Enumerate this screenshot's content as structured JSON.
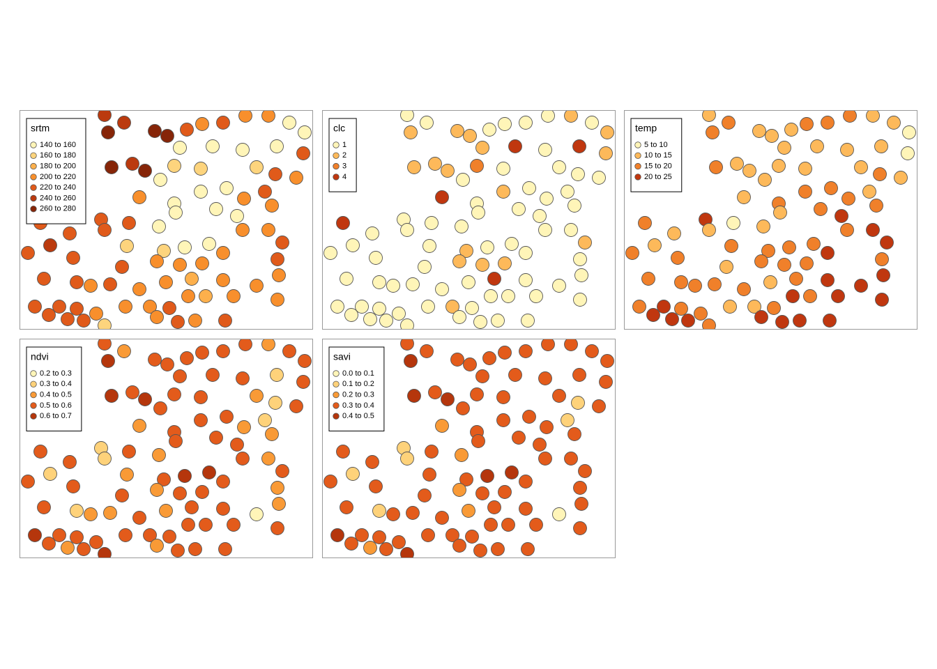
{
  "chart_data": {
    "type": "map",
    "xlim": [
      0,
      421
    ],
    "ylim": [
      315,
      0
    ],
    "points": [
      [
        122,
        7
      ],
      [
        150,
        18
      ],
      [
        127,
        32
      ],
      [
        194,
        30
      ],
      [
        212,
        37
      ],
      [
        240,
        28
      ],
      [
        262,
        20
      ],
      [
        292,
        18
      ],
      [
        324,
        8
      ],
      [
        357,
        8
      ],
      [
        387,
        18
      ],
      [
        409,
        32
      ],
      [
        277,
        52
      ],
      [
        230,
        54
      ],
      [
        320,
        57
      ],
      [
        369,
        52
      ],
      [
        407,
        62
      ],
      [
        132,
        82
      ],
      [
        162,
        77
      ],
      [
        180,
        87
      ],
      [
        222,
        80
      ],
      [
        260,
        84
      ],
      [
        340,
        82
      ],
      [
        367,
        92
      ],
      [
        397,
        97
      ],
      [
        202,
        100
      ],
      [
        260,
        117
      ],
      [
        297,
        112
      ],
      [
        322,
        127
      ],
      [
        352,
        117
      ],
      [
        172,
        125
      ],
      [
        222,
        134
      ],
      [
        282,
        142
      ],
      [
        362,
        137
      ],
      [
        117,
        157
      ],
      [
        157,
        162
      ],
      [
        200,
        167
      ],
      [
        224,
        147
      ],
      [
        312,
        152
      ],
      [
        357,
        172
      ],
      [
        30,
        162
      ],
      [
        72,
        177
      ],
      [
        122,
        172
      ],
      [
        154,
        195
      ],
      [
        207,
        202
      ],
      [
        237,
        197
      ],
      [
        272,
        192
      ],
      [
        292,
        205
      ],
      [
        320,
        172
      ],
      [
        377,
        190
      ],
      [
        12,
        205
      ],
      [
        44,
        194
      ],
      [
        77,
        212
      ],
      [
        197,
        217
      ],
      [
        230,
        222
      ],
      [
        262,
        220
      ],
      [
        147,
        225
      ],
      [
        370,
        214
      ],
      [
        35,
        242
      ],
      [
        82,
        247
      ],
      [
        102,
        252
      ],
      [
        130,
        250
      ],
      [
        172,
        257
      ],
      [
        210,
        247
      ],
      [
        247,
        242
      ],
      [
        292,
        244
      ],
      [
        340,
        252
      ],
      [
        372,
        237
      ],
      [
        57,
        282
      ],
      [
        22,
        282
      ],
      [
        82,
        285
      ],
      [
        110,
        292
      ],
      [
        152,
        282
      ],
      [
        187,
        282
      ],
      [
        215,
        284
      ],
      [
        242,
        267
      ],
      [
        267,
        267
      ],
      [
        307,
        267
      ],
      [
        370,
        272
      ],
      [
        42,
        294
      ],
      [
        69,
        300
      ],
      [
        92,
        302
      ],
      [
        122,
        309
      ],
      [
        197,
        297
      ],
      [
        227,
        304
      ],
      [
        252,
        302
      ],
      [
        295,
        302
      ]
    ],
    "panels": [
      {
        "title": "srtm",
        "legend": [
          "140 to 160",
          "160 to 180",
          "180 to 200",
          "200 to 220",
          "220 to 240",
          "240 to 260",
          "260 to 280"
        ],
        "colors": [
          "#fff5b8",
          "#fdd47d",
          "#fdb04c",
          "#f88f2c",
          "#e05a1a",
          "#bb3a0e",
          "#862508"
        ],
        "classes": [
          5,
          5,
          6,
          6,
          6,
          4,
          3,
          4,
          3,
          3,
          0,
          0,
          0,
          0,
          0,
          0,
          4,
          6,
          5,
          6,
          1,
          1,
          1,
          4,
          3,
          0,
          0,
          0,
          3,
          4,
          3,
          0,
          0,
          3,
          4,
          4,
          0,
          0,
          0,
          3,
          4,
          4,
          4,
          1,
          1,
          0,
          0,
          3,
          3,
          4,
          4,
          5,
          4,
          3,
          3,
          3,
          4,
          4,
          4,
          4,
          3,
          4,
          3,
          3,
          2,
          3,
          3,
          3,
          4,
          4,
          4,
          3,
          3,
          3,
          4,
          3,
          2,
          3,
          3,
          4,
          4,
          4,
          1,
          3,
          4,
          3,
          4
        ]
      },
      {
        "title": "clc",
        "legend": [
          "1",
          "2",
          "3",
          "4"
        ],
        "colors": [
          "#fff5b8",
          "#fdb95a",
          "#f0802a",
          "#c0370f"
        ],
        "classes": [
          0,
          0,
          1,
          1,
          1,
          0,
          0,
          0,
          0,
          1,
          0,
          1,
          3,
          1,
          0,
          3,
          1,
          1,
          1,
          1,
          2,
          0,
          0,
          0,
          0,
          0,
          1,
          0,
          0,
          0,
          3,
          0,
          0,
          0,
          0,
          0,
          0,
          0,
          0,
          0,
          3,
          0,
          0,
          0,
          1,
          0,
          0,
          0,
          0,
          1,
          0,
          0,
          0,
          1,
          1,
          1,
          0,
          0,
          0,
          0,
          0,
          0,
          0,
          0,
          3,
          0,
          0,
          0,
          0,
          0,
          0,
          0,
          0,
          1,
          0,
          0,
          0,
          0,
          0,
          0,
          0,
          0,
          0,
          0,
          0,
          0,
          0
        ]
      },
      {
        "title": "temp",
        "legend": [
          "5 to 10",
          "10 to 15",
          "15 to 20",
          "20 to 25"
        ],
        "colors": [
          "#fff5b8",
          "#fdb95a",
          "#f0802a",
          "#c0370f"
        ],
        "classes": [
          1,
          2,
          2,
          1,
          1,
          1,
          2,
          2,
          2,
          1,
          1,
          0,
          1,
          1,
          1,
          1,
          0,
          2,
          1,
          1,
          1,
          1,
          1,
          2,
          1,
          1,
          2,
          2,
          2,
          1,
          1,
          2,
          2,
          2,
          3,
          0,
          1,
          1,
          3,
          3,
          2,
          1,
          1,
          2,
          2,
          2,
          2,
          3,
          2,
          3,
          2,
          1,
          2,
          2,
          2,
          2,
          1,
          2,
          2,
          2,
          2,
          2,
          2,
          1,
          2,
          3,
          3,
          3,
          3,
          2,
          2,
          2,
          1,
          1,
          2,
          3,
          2,
          3,
          3,
          3,
          3,
          3,
          2,
          3,
          3,
          3,
          3
        ]
      },
      {
        "title": "ndvi",
        "legend": [
          "0.2 to 0.3",
          "0.3 to 0.4",
          "0.4 to 0.5",
          "0.5 to 0.6",
          "0.6 to 0.7"
        ],
        "colors": [
          "#fff5b8",
          "#fed27a",
          "#f99a36",
          "#e35b1b",
          "#b5360c"
        ],
        "classes": [
          3,
          2,
          4,
          3,
          3,
          3,
          3,
          3,
          3,
          2,
          3,
          3,
          3,
          3,
          3,
          1,
          3,
          4,
          3,
          4,
          3,
          3,
          2,
          1,
          3,
          3,
          3,
          3,
          2,
          1,
          2,
          3,
          3,
          2,
          1,
          3,
          2,
          3,
          3,
          2,
          3,
          3,
          1,
          2,
          3,
          4,
          4,
          3,
          3,
          3,
          3,
          1,
          3,
          2,
          3,
          3,
          3,
          2,
          3,
          1,
          2,
          2,
          3,
          2,
          3,
          3,
          0,
          2,
          3,
          4,
          3,
          3,
          3,
          3,
          3,
          3,
          3,
          3,
          3,
          3,
          2,
          3,
          4,
          2,
          3,
          3,
          3
        ]
      },
      {
        "title": "savi",
        "legend": [
          "0.0 to 0.1",
          "0.1 to 0.2",
          "0.2 to 0.3",
          "0.3 to 0.4",
          "0.4 to 0.5"
        ],
        "colors": [
          "#fff5b8",
          "#fed27a",
          "#f99a36",
          "#e35b1b",
          "#b5360c"
        ],
        "classes": [
          3,
          3,
          4,
          3,
          3,
          3,
          3,
          3,
          3,
          3,
          3,
          3,
          3,
          3,
          3,
          3,
          3,
          4,
          3,
          4,
          3,
          3,
          3,
          1,
          3,
          3,
          3,
          3,
          3,
          1,
          2,
          3,
          3,
          3,
          1,
          3,
          2,
          3,
          3,
          3,
          3,
          3,
          1,
          3,
          3,
          4,
          4,
          3,
          3,
          3,
          3,
          1,
          3,
          2,
          3,
          3,
          3,
          3,
          3,
          1,
          3,
          3,
          3,
          2,
          3,
          3,
          0,
          3,
          3,
          4,
          3,
          3,
          3,
          3,
          3,
          3,
          3,
          3,
          3,
          3,
          2,
          3,
          4,
          3,
          3,
          3,
          3
        ]
      }
    ]
  }
}
